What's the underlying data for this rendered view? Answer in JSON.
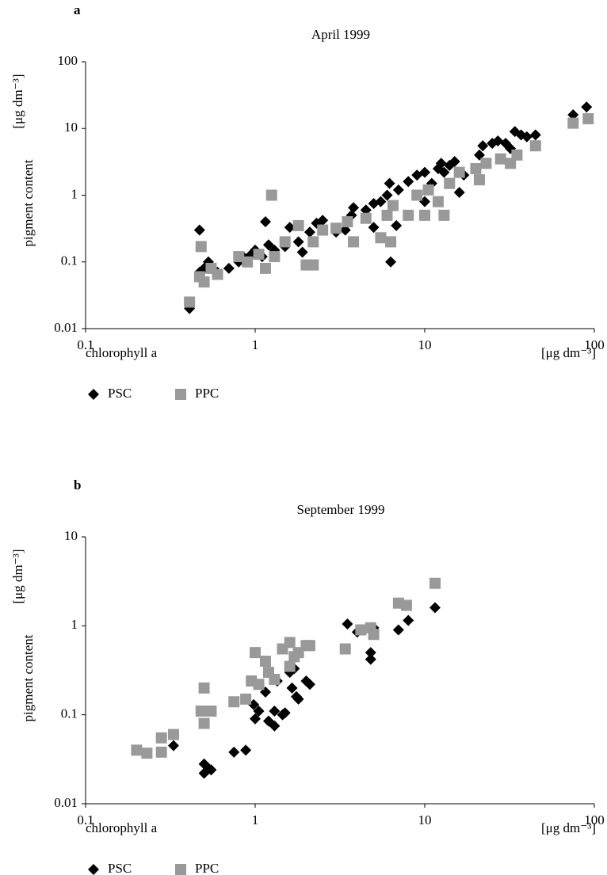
{
  "chart_data": [
    {
      "type": "scatter",
      "panel_label": "a",
      "title": "April 1999",
      "ylabel": "pigment content",
      "yunit": "[μg dm⁻³]",
      "xlabel": "chlorophyll a",
      "xunit": "[μg dm⁻³]",
      "log_x": true,
      "log_y": true,
      "grid": false,
      "legend": "bottom-left",
      "xlim": [
        0.1,
        100
      ],
      "xticks": [
        0.1,
        1,
        10,
        100
      ],
      "ylim": [
        0.01,
        100
      ],
      "yticks": [
        0.01,
        0.1,
        1,
        10,
        100
      ],
      "series": [
        {
          "name": "PSC",
          "color": "#000000",
          "marker": "diamond",
          "x": [
            0.41,
            0.47,
            0.47,
            0.5,
            0.53,
            0.6,
            0.7,
            0.8,
            0.85,
            0.95,
            1.0,
            1.1,
            1.15,
            1.2,
            1.3,
            1.5,
            1.6,
            1.8,
            1.9,
            2.1,
            2.3,
            2.5,
            3,
            3.4,
            3.7,
            3.8,
            4.5,
            5,
            5,
            5.5,
            6,
            6.2,
            6.3,
            6.8,
            7,
            8,
            9,
            10,
            10,
            11,
            12,
            12.5,
            13,
            14,
            15,
            16,
            17,
            20,
            21,
            22,
            25,
            27,
            30,
            32,
            34,
            37,
            40,
            45,
            75,
            90
          ],
          "values": [
            0.02,
            0.3,
            0.07,
            0.08,
            0.1,
            0.07,
            0.08,
            0.1,
            0.12,
            0.13,
            0.15,
            0.12,
            0.4,
            0.18,
            0.15,
            0.17,
            0.33,
            0.2,
            0.14,
            0.28,
            0.38,
            0.42,
            0.28,
            0.3,
            0.5,
            0.65,
            0.6,
            0.75,
            0.33,
            0.8,
            1.0,
            1.5,
            0.1,
            0.35,
            1.2,
            1.6,
            2,
            0.8,
            2.2,
            1.5,
            2.5,
            3,
            2.2,
            2.8,
            3.2,
            1.1,
            2.0,
            2.5,
            4,
            5.5,
            6,
            6.5,
            6,
            5,
            9,
            8,
            7.5,
            8,
            16,
            21
          ]
        },
        {
          "name": "PPC",
          "color": "#999999",
          "marker": "square",
          "x": [
            0.41,
            0.47,
            0.48,
            0.5,
            0.55,
            0.6,
            0.8,
            0.9,
            1.05,
            1.15,
            1.25,
            1.3,
            1.5,
            1.8,
            2,
            2.2,
            2.2,
            2.5,
            3,
            3.5,
            3.8,
            4.5,
            5.5,
            6,
            6.3,
            6.5,
            8,
            9,
            10,
            10.5,
            12,
            13,
            14,
            16,
            20,
            21,
            23,
            28,
            32,
            35,
            45,
            75,
            92
          ],
          "values": [
            0.025,
            0.06,
            0.17,
            0.05,
            0.08,
            0.065,
            0.12,
            0.1,
            0.13,
            0.08,
            1.0,
            0.12,
            0.2,
            0.35,
            0.09,
            0.09,
            0.2,
            0.3,
            0.32,
            0.4,
            0.2,
            0.45,
            0.23,
            0.5,
            0.2,
            0.7,
            0.5,
            1.0,
            0.5,
            1.2,
            0.8,
            0.5,
            1.5,
            2.2,
            2.5,
            1.7,
            3,
            3.5,
            3,
            4,
            5.5,
            12,
            14
          ]
        }
      ]
    },
    {
      "type": "scatter",
      "panel_label": "b",
      "title": "September 1999",
      "ylabel": "pigment content",
      "yunit": "[μg dm⁻³]",
      "xlabel": "chlorophyll a",
      "xunit": "[μg dm⁻³]",
      "log_x": true,
      "log_y": true,
      "grid": false,
      "legend": "bottom-left",
      "xlim": [
        0.1,
        100
      ],
      "xticks": [
        0.1,
        1,
        10,
        100
      ],
      "ylim": [
        0.01,
        10
      ],
      "yticks": [
        0.01,
        0.1,
        1,
        10
      ],
      "series": [
        {
          "name": "PSC",
          "color": "#000000",
          "marker": "diamond",
          "x": [
            0.33,
            0.5,
            0.5,
            0.53,
            0.55,
            0.75,
            0.88,
            0.98,
            1.0,
            1.05,
            1.15,
            1.2,
            1.3,
            1.3,
            1.35,
            1.45,
            1.5,
            1.6,
            1.65,
            1.7,
            1.75,
            1.8,
            2.0,
            2.1,
            3.5,
            4,
            4.8,
            4.8,
            5,
            7,
            8,
            11.5
          ],
          "values": [
            0.045,
            0.028,
            0.022,
            0.025,
            0.024,
            0.038,
            0.04,
            0.13,
            0.09,
            0.11,
            0.18,
            0.085,
            0.11,
            0.075,
            0.24,
            0.1,
            0.105,
            0.3,
            0.2,
            0.33,
            0.16,
            0.15,
            0.24,
            0.22,
            1.05,
            0.85,
            0.5,
            0.42,
            0.95,
            0.9,
            1.15,
            1.6
          ]
        },
        {
          "name": "PPC",
          "color": "#999999",
          "marker": "square",
          "x": [
            0.2,
            0.23,
            0.28,
            0.28,
            0.33,
            0.48,
            0.5,
            0.5,
            0.55,
            0.75,
            0.88,
            0.95,
            1.0,
            1.05,
            1.15,
            1.2,
            1.3,
            1.45,
            1.6,
            1.6,
            1.7,
            1.8,
            2.0,
            2.1,
            3.4,
            4.2,
            4.8,
            5,
            7,
            7.8,
            11.5
          ],
          "values": [
            0.04,
            0.037,
            0.038,
            0.055,
            0.06,
            0.11,
            0.2,
            0.08,
            0.11,
            0.14,
            0.15,
            0.24,
            0.5,
            0.22,
            0.4,
            0.3,
            0.25,
            0.55,
            0.65,
            0.35,
            0.45,
            0.5,
            0.6,
            0.6,
            0.55,
            0.9,
            0.95,
            0.8,
            1.8,
            1.7,
            3.0
          ]
        }
      ]
    }
  ]
}
